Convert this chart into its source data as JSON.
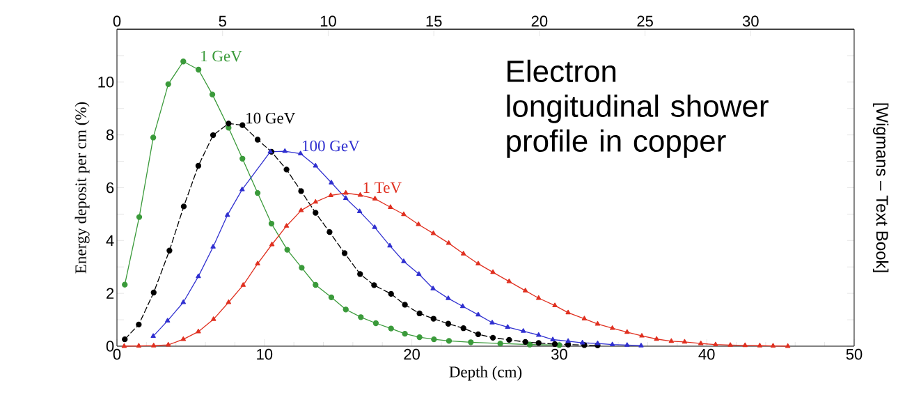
{
  "chart_data": {
    "type": "line",
    "xlabel": "Depth (cm)",
    "ylabel": "Energy deposit per cm (%)",
    "annotations": [
      "Electron longitudinal shower profile in copper",
      "[Wigmans – Text Book]"
    ],
    "xlim": [
      0,
      50
    ],
    "xticks": [
      0,
      10,
      20,
      30,
      40,
      50
    ],
    "x2lim": [
      0,
      34.9
    ],
    "x2ticks": [
      0,
      5,
      10,
      15,
      20,
      25,
      30
    ],
    "ylim": [
      0,
      12
    ],
    "yticks": [
      0,
      {
        "value": 1,
        "label": null
      },
      2,
      {
        "value": 3,
        "label": null
      },
      4,
      {
        "value": 5,
        "label": null
      },
      6,
      {
        "value": 7,
        "label": null
      },
      8,
      {
        "value": 9,
        "label": null
      },
      10,
      {
        "value": 11,
        "label": null
      }
    ],
    "grid": false,
    "series": [
      {
        "name": "1 GeV",
        "color": "#3a9a3a",
        "marker": "circle",
        "line_style": "solid",
        "x": [
          0.53,
          1.51,
          2.46,
          3.48,
          4.5,
          5.53,
          6.47,
          7.57,
          8.51,
          9.54,
          10.48,
          11.55,
          12.53,
          13.47,
          14.54,
          15.52,
          16.54,
          17.56,
          18.59,
          19.53,
          20.52,
          21.5,
          22.52,
          24,
          26,
          28,
          30
        ],
        "values": [
          2.33,
          4.89,
          7.9,
          9.92,
          10.78,
          10.47,
          9.53,
          8.27,
          7.1,
          5.8,
          4.64,
          3.65,
          2.97,
          2.32,
          1.85,
          1.39,
          1.1,
          0.87,
          0.67,
          0.47,
          0.34,
          0.26,
          0.2,
          0.15,
          0.1,
          0.06,
          0.04
        ]
      },
      {
        "name": "10 GeV",
        "color": "#000000",
        "marker": "circle",
        "line_style": "dashed",
        "x": [
          0.53,
          1.48,
          2.49,
          3.56,
          4.53,
          5.52,
          6.52,
          7.57,
          8.51,
          9.54,
          10.48,
          11.5,
          12.49,
          13.47,
          14.42,
          15.44,
          16.49,
          17.44,
          18.59,
          19.53,
          20.52,
          21.47,
          22.47,
          23.5,
          24.5,
          25.5,
          26.6,
          27.7,
          28.6,
          29.7,
          30.6,
          31.7,
          32.6
        ],
        "values": [
          0.26,
          0.82,
          2.03,
          3.62,
          5.29,
          6.83,
          7.99,
          8.43,
          8.37,
          7.82,
          7.36,
          6.69,
          5.87,
          5.05,
          4.32,
          3.52,
          2.73,
          2.31,
          1.98,
          1.57,
          1.24,
          1.04,
          0.85,
          0.68,
          0.45,
          0.32,
          0.24,
          0.16,
          0.12,
          0.08,
          0.06,
          0.04,
          0.03
        ]
      },
      {
        "name": "100 GeV",
        "color": "#3030d0",
        "marker": "triangle",
        "line_style": "solid",
        "x": [
          2.46,
          3.43,
          4.5,
          5.52,
          6.52,
          7.49,
          8.49,
          10.4,
          11.39,
          12.45,
          13.47,
          14.54,
          15.52,
          16.46,
          17.48,
          18.51,
          19.45,
          20.48,
          21.44,
          22.47,
          23.45,
          24.5,
          25.45,
          26.5,
          27.56,
          28.6,
          29.56,
          30.6,
          31.57,
          32.6,
          33.6,
          34.6,
          35.55
        ],
        "values": [
          0.38,
          0.96,
          1.66,
          2.64,
          3.76,
          4.96,
          5.93,
          7.36,
          7.38,
          7.29,
          6.83,
          6.19,
          5.6,
          5.1,
          4.5,
          3.8,
          3.21,
          2.73,
          2.18,
          1.81,
          1.51,
          1.19,
          0.89,
          0.72,
          0.57,
          0.42,
          0.25,
          0.19,
          0.13,
          0.1,
          0.06,
          0.04,
          0.02
        ]
      },
      {
        "name": "1 TeV",
        "color": "#e03020",
        "marker": "triangle",
        "line_style": "solid",
        "x": [
          0.49,
          1.48,
          2.49,
          3.48,
          4.5,
          5.52,
          6.55,
          7.57,
          8.56,
          9.54,
          10.51,
          11.5,
          12.49,
          13.47,
          14.5,
          15.52,
          16.5,
          17.5,
          18.55,
          19.45,
          20.45,
          21.46,
          22.5,
          23.5,
          24.5,
          25.5,
          26.6,
          27.7,
          28.6,
          29.7,
          30.6,
          31.7,
          32.6,
          33.6,
          34.6,
          35.6,
          36.6,
          37.6,
          38.5,
          39.6,
          40.6,
          41.6,
          42.6,
          43.6,
          44.5,
          45.5
        ],
        "values": [
          0,
          0.01,
          0.02,
          0.05,
          0.26,
          0.55,
          1.02,
          1.66,
          2.31,
          3.12,
          3.85,
          4.55,
          5.14,
          5.46,
          5.71,
          5.8,
          5.72,
          5.58,
          5.26,
          4.99,
          4.61,
          4.27,
          3.9,
          3.5,
          3.12,
          2.8,
          2.45,
          2.1,
          1.82,
          1.54,
          1.27,
          1.04,
          0.84,
          0.68,
          0.53,
          0.39,
          0.27,
          0.19,
          0.16,
          0.1,
          0.06,
          0.04,
          0.03,
          0.02,
          0.01,
          0
        ]
      }
    ]
  }
}
